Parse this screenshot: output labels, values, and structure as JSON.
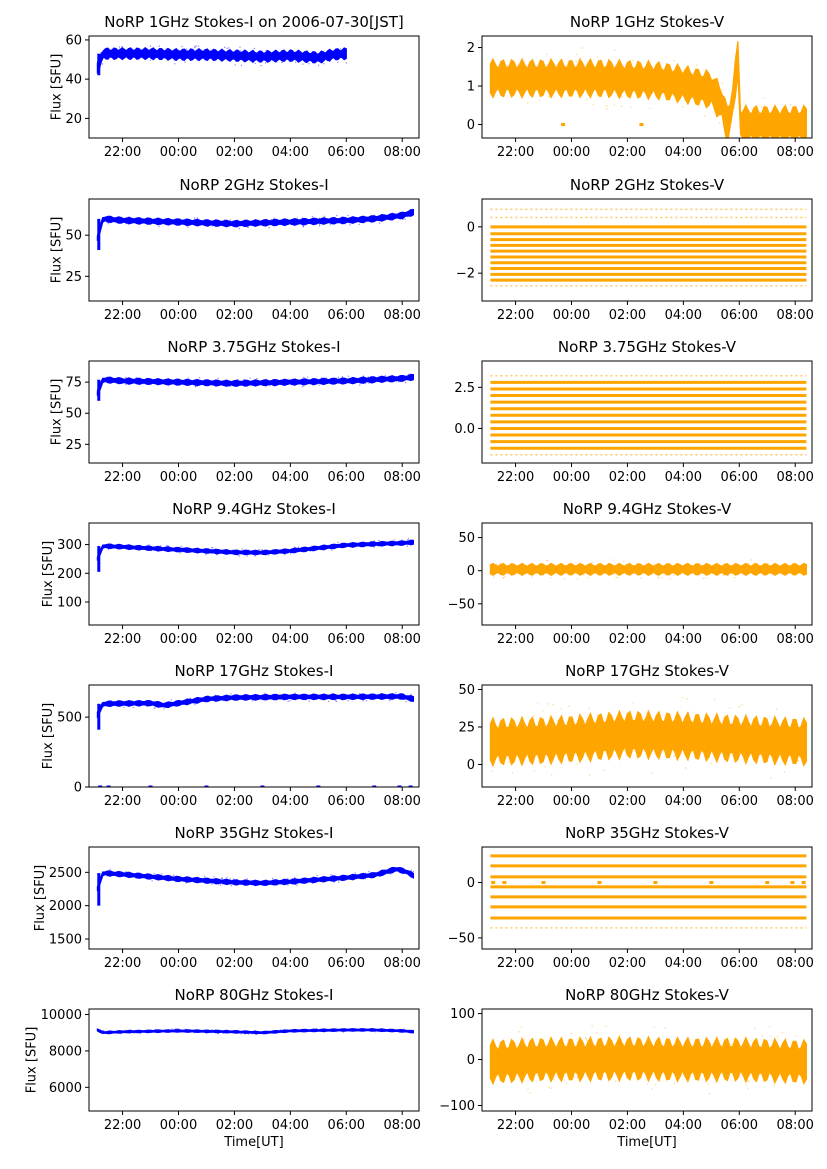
{
  "figure": {
    "title_suffix": "on 2006-07-30[JST]",
    "ylabel": "Flux [SFU]",
    "xlabel": "Time[UT]",
    "x_tick_labels": [
      "22:00",
      "00:00",
      "02:00",
      "04:00",
      "06:00",
      "08:00"
    ]
  },
  "colors": {
    "stokes_i": "#0000ff",
    "stokes_v": "#ffa500"
  },
  "chart_data": [
    {
      "type": "scatter",
      "panel": "I",
      "title": "NoRP 1GHz Stokes-I on 2006-07-30[JST]",
      "xlabel": "",
      "ylabel": "Flux [SFU]",
      "xlim": [
        -3.2,
        8.6
      ],
      "ylim": [
        10,
        62
      ],
      "yticks": [
        20,
        40,
        60
      ],
      "ytick_labels": [
        "20",
        "40",
        "60"
      ],
      "x_ticks": [
        -2,
        0,
        2,
        4,
        6,
        8
      ],
      "data_range": [
        -2.9,
        6.0
      ],
      "spike": [
        -2.85,
        42
      ],
      "series": [
        {
          "name": "Stokes-I",
          "x": [
            -2.9,
            -2.7,
            -2,
            -1,
            0,
            1,
            2,
            3,
            4,
            4.5,
            5,
            5.5,
            6.0
          ],
          "y": [
            46,
            53,
            53,
            53,
            52.5,
            52.5,
            52,
            51.5,
            52,
            51.5,
            51,
            52.5,
            53
          ]
        }
      ],
      "band": 3
    },
    {
      "type": "scatter",
      "panel": "V",
      "title": "NoRP 1GHz Stokes-V",
      "xlabel": "",
      "ylabel": "",
      "xlim": [
        -3.2,
        8.6
      ],
      "ylim": [
        -0.35,
        2.3
      ],
      "yticks": [
        0,
        1,
        2
      ],
      "ytick_labels": [
        "0",
        "1",
        "2"
      ],
      "x_ticks": [
        -2,
        0,
        2,
        4,
        6,
        8
      ],
      "data_range": [
        -2.9,
        8.4
      ],
      "series": [
        {
          "name": "Stokes-V",
          "x": [
            -2.9,
            -1,
            1,
            3,
            4,
            5,
            5.4,
            5.6,
            5.8,
            5.95,
            6.0,
            8.4
          ],
          "y": [
            1.2,
            1.2,
            1.2,
            1.15,
            1.05,
            0.9,
            0.5,
            -0.1,
            0.8,
            1.8,
            0,
            0
          ]
        }
      ],
      "band": 0.5,
      "dots": [
        [
          -0.3,
          0
        ],
        [
          2.5,
          0
        ]
      ]
    },
    {
      "type": "scatter",
      "panel": "I",
      "title": "NoRP 2GHz Stokes-I",
      "xlabel": "",
      "ylabel": "Flux [SFU]",
      "xlim": [
        -3.2,
        8.6
      ],
      "ylim": [
        10,
        72
      ],
      "yticks": [
        25,
        50
      ],
      "ytick_labels": [
        "25",
        "50"
      ],
      "x_ticks": [
        -2,
        0,
        2,
        4,
        6,
        8
      ],
      "data_range": [
        -2.9,
        8.4
      ],
      "spike": [
        -2.85,
        41
      ],
      "series": [
        {
          "name": "Stokes-I",
          "x": [
            -2.9,
            -2.7,
            -2,
            0,
            2,
            4,
            6,
            7,
            8,
            8.4
          ],
          "y": [
            48,
            60,
            59,
            58,
            57,
            58,
            59,
            60,
            62,
            64
          ]
        }
      ],
      "band": 2
    },
    {
      "type": "scatter",
      "panel": "V",
      "title": "NoRP 2GHz Stokes-V",
      "xlabel": "",
      "ylabel": "",
      "xlim": [
        -3.2,
        8.6
      ],
      "ylim": [
        -3.2,
        1.2
      ],
      "yticks": [
        -2,
        0
      ],
      "ytick_labels": [
        "−2",
        "0"
      ],
      "x_ticks": [
        -2,
        0,
        2,
        4,
        6,
        8
      ],
      "data_range": [
        -2.9,
        8.4
      ],
      "levels": [
        0,
        -0.3,
        -0.55,
        -0.8,
        -1.05,
        -1.3,
        -1.55,
        -1.8,
        -2.05,
        -2.3
      ],
      "faint_levels": [
        0.4,
        0.75,
        -2.55
      ]
    },
    {
      "type": "scatter",
      "panel": "I",
      "title": "NoRP 3.75GHz Stokes-I",
      "xlabel": "",
      "ylabel": "Flux [SFU]",
      "xlim": [
        -3.2,
        8.6
      ],
      "ylim": [
        10,
        92
      ],
      "yticks": [
        25,
        50,
        75
      ],
      "ytick_labels": [
        "25",
        "50",
        "75"
      ],
      "x_ticks": [
        -2,
        0,
        2,
        4,
        6,
        8
      ],
      "data_range": [
        -2.9,
        8.4
      ],
      "spike": [
        -2.85,
        60
      ],
      "series": [
        {
          "name": "Stokes-I",
          "x": [
            -2.9,
            -2.7,
            -2,
            0,
            2,
            4,
            6,
            7,
            8,
            8.4
          ],
          "y": [
            66,
            77,
            76,
            75,
            74,
            75,
            76,
            77,
            78,
            79
          ]
        }
      ],
      "band": 2.5
    },
    {
      "type": "scatter",
      "panel": "V",
      "title": "NoRP 3.75GHz Stokes-V",
      "xlabel": "",
      "ylabel": "",
      "xlim": [
        -3.2,
        8.6
      ],
      "ylim": [
        -2.1,
        4.1
      ],
      "yticks": [
        0,
        2.5
      ],
      "ytick_labels": [
        "0.0",
        "2.5"
      ],
      "x_ticks": [
        -2,
        0,
        2,
        4,
        6,
        8
      ],
      "data_range": [
        -2.9,
        8.4
      ],
      "levels": [
        -1.2,
        -0.8,
        -0.4,
        0,
        0.4,
        0.8,
        1.2,
        1.6,
        2.0,
        2.4,
        2.8
      ],
      "faint_levels": [
        3.2,
        -1.6
      ]
    },
    {
      "type": "scatter",
      "panel": "I",
      "title": "NoRP 9.4GHz Stokes-I",
      "xlabel": "",
      "ylabel": "Flux [SFU]",
      "xlim": [
        -3.2,
        8.6
      ],
      "ylim": [
        20,
        375
      ],
      "yticks": [
        100,
        200,
        300
      ],
      "ytick_labels": [
        "100",
        "200",
        "300"
      ],
      "x_ticks": [
        -2,
        0,
        2,
        4,
        6,
        8
      ],
      "data_range": [
        -2.9,
        8.4
      ],
      "spike": [
        -2.85,
        205
      ],
      "series": [
        {
          "name": "Stokes-I",
          "x": [
            -2.9,
            -2.7,
            -2,
            0,
            2,
            3,
            4,
            5,
            6,
            7,
            8,
            8.4
          ],
          "y": [
            250,
            295,
            292,
            282,
            273,
            272,
            278,
            288,
            298,
            302,
            305,
            308
          ]
        }
      ],
      "band": 8
    },
    {
      "type": "scatter",
      "panel": "V",
      "title": "NoRP 9.4GHz Stokes-V",
      "xlabel": "",
      "ylabel": "",
      "xlim": [
        -3.2,
        8.6
      ],
      "ylim": [
        -82,
        72
      ],
      "yticks": [
        -50,
        0,
        50
      ],
      "ytick_labels": [
        "−50",
        "0",
        "50"
      ],
      "x_ticks": [
        -2,
        0,
        2,
        4,
        6,
        8
      ],
      "data_range": [
        -2.9,
        8.4
      ],
      "series": [
        {
          "name": "Stokes-V",
          "x": [
            -2.9,
            8.4
          ],
          "y": [
            2,
            2
          ]
        }
      ],
      "band": 9
    },
    {
      "type": "scatter",
      "panel": "I",
      "title": "NoRP 17GHz Stokes-I",
      "xlabel": "",
      "ylabel": "Flux [SFU]",
      "xlim": [
        -3.2,
        8.6
      ],
      "ylim": [
        0,
        730
      ],
      "yticks": [
        0,
        500
      ],
      "ytick_labels": [
        "0",
        "500"
      ],
      "x_ticks": [
        -2,
        0,
        2,
        4,
        6,
        8
      ],
      "data_range": [
        -2.9,
        8.4
      ],
      "spike": [
        -2.85,
        410
      ],
      "series": [
        {
          "name": "Stokes-I",
          "x": [
            -2.9,
            -2.7,
            -2,
            -1,
            -0.5,
            0,
            1,
            2,
            4,
            6,
            8,
            8.4
          ],
          "y": [
            520,
            595,
            598,
            600,
            585,
            600,
            630,
            640,
            645,
            645,
            648,
            630
          ]
        }
      ],
      "band": 20,
      "dots": [
        [
          -2.8,
          0
        ],
        [
          -2.5,
          0
        ],
        [
          -1.0,
          0
        ],
        [
          1.0,
          0
        ],
        [
          3.0,
          0
        ],
        [
          5.0,
          0
        ],
        [
          7.0,
          0
        ],
        [
          7.9,
          0
        ],
        [
          8.3,
          0
        ]
      ]
    },
    {
      "type": "scatter",
      "panel": "V",
      "title": "NoRP 17GHz Stokes-V",
      "xlabel": "",
      "ylabel": "",
      "xlim": [
        -3.2,
        8.6
      ],
      "ylim": [
        -15,
        53
      ],
      "yticks": [
        0,
        25,
        50
      ],
      "ytick_labels": [
        "0",
        "25",
        "50"
      ],
      "x_ticks": [
        -2,
        0,
        2,
        4,
        6,
        8
      ],
      "data_range": [
        -2.9,
        8.4
      ],
      "series": [
        {
          "name": "Stokes-V",
          "x": [
            -2.9,
            -1,
            0,
            2,
            4,
            6,
            8.4
          ],
          "y": [
            15,
            16,
            17,
            20,
            19,
            17,
            15
          ]
        }
      ],
      "band": 16
    },
    {
      "type": "scatter",
      "panel": "I",
      "title": "NoRP 35GHz Stokes-I",
      "xlabel": "",
      "ylabel": "Flux [SFU]",
      "xlim": [
        -3.2,
        8.6
      ],
      "ylim": [
        1350,
        2880
      ],
      "yticks": [
        1500,
        2000,
        2500
      ],
      "ytick_labels": [
        "1500",
        "2000",
        "2500"
      ],
      "x_ticks": [
        -2,
        0,
        2,
        4,
        6,
        8
      ],
      "data_range": [
        -2.9,
        8.4
      ],
      "spike": [
        -2.85,
        2000
      ],
      "series": [
        {
          "name": "Stokes-I",
          "x": [
            -2.9,
            -2.7,
            -2,
            0,
            2,
            3,
            4,
            6,
            7,
            7.8,
            8.2,
            8.4
          ],
          "y": [
            2250,
            2490,
            2470,
            2400,
            2350,
            2340,
            2360,
            2420,
            2460,
            2550,
            2500,
            2450
          ]
        }
      ],
      "band": 40
    },
    {
      "type": "scatter",
      "panel": "V",
      "title": "NoRP 35GHz Stokes-V",
      "xlabel": "",
      "ylabel": "",
      "xlim": [
        -3.2,
        8.6
      ],
      "ylim": [
        -60,
        32
      ],
      "yticks": [
        -50,
        0
      ],
      "ytick_labels": [
        "−50",
        "0"
      ],
      "x_ticks": [
        -2,
        0,
        2,
        4,
        6,
        8
      ],
      "data_range": [
        -2.9,
        8.4
      ],
      "levels": [
        24,
        15,
        5,
        -4,
        -13,
        -22,
        -32
      ],
      "faint_levels": [
        -41
      ],
      "dots": [
        [
          -2.8,
          0
        ],
        [
          -2.4,
          0
        ],
        [
          -1.0,
          0
        ],
        [
          1.0,
          0
        ],
        [
          3.0,
          0
        ],
        [
          5.0,
          0
        ],
        [
          7.0,
          0
        ],
        [
          7.9,
          0
        ],
        [
          8.3,
          0
        ]
      ]
    },
    {
      "type": "scatter",
      "panel": "I",
      "title": "NoRP 80GHz Stokes-I",
      "xlabel": "Time[UT]",
      "ylabel": "Flux [SFU]",
      "xlim": [
        -3.2,
        8.6
      ],
      "ylim": [
        4700,
        10300
      ],
      "yticks": [
        6000,
        8000,
        10000
      ],
      "ytick_labels": [
        "6000",
        "8000",
        "10000"
      ],
      "x_ticks": [
        -2,
        0,
        2,
        4,
        6,
        8
      ],
      "data_range": [
        -2.9,
        8.4
      ],
      "series": [
        {
          "name": "Stokes-I",
          "x": [
            -2.9,
            -2.7,
            -2,
            0,
            2,
            3,
            4,
            6,
            7,
            8,
            8.4
          ],
          "y": [
            9150,
            9000,
            9050,
            9100,
            9050,
            9000,
            9100,
            9150,
            9150,
            9100,
            9050
          ]
        }
      ],
      "band": 70
    },
    {
      "type": "scatter",
      "panel": "V",
      "title": "NoRP 80GHz Stokes-V",
      "xlabel": "Time[UT]",
      "ylabel": "",
      "xlim": [
        -3.2,
        8.6
      ],
      "ylim": [
        -112,
        110
      ],
      "yticks": [
        -100,
        0,
        100
      ],
      "ytick_labels": [
        "−100",
        "0",
        "100"
      ],
      "x_ticks": [
        -2,
        0,
        2,
        4,
        6,
        8
      ],
      "data_range": [
        -2.9,
        8.4
      ],
      "series": [
        {
          "name": "Stokes-V",
          "x": [
            -2.9,
            -1,
            0,
            2,
            4,
            6,
            8.4
          ],
          "y": [
            -5,
            0,
            0,
            2,
            0,
            0,
            -5
          ]
        }
      ],
      "band": 48
    }
  ]
}
